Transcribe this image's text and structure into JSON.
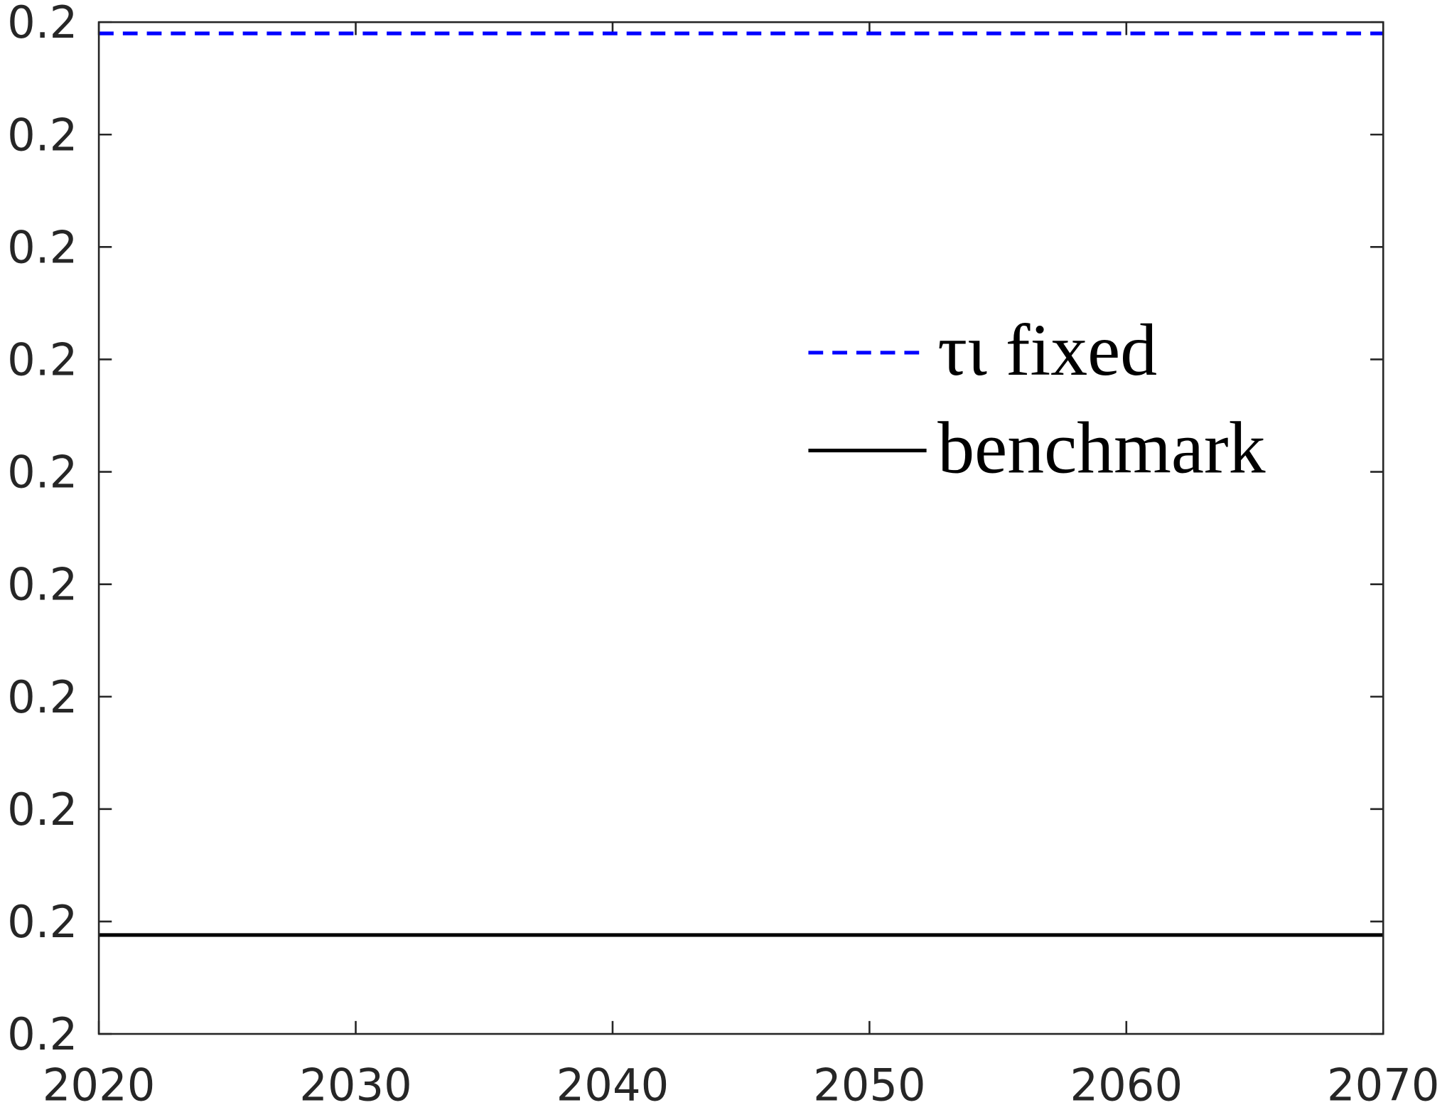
{
  "chart_data": {
    "type": "line",
    "x": [
      2020,
      2070
    ],
    "xlim": [
      2020,
      2070
    ],
    "xticks": [
      2020,
      2030,
      2040,
      2050,
      2060,
      2070
    ],
    "ylim": [
      0.2,
      0.2009
    ],
    "yticks": [
      {
        "value": 0.2,
        "label": "0.2"
      },
      {
        "value": 0.2001,
        "label": "0.2"
      },
      {
        "value": 0.2002,
        "label": "0.2"
      },
      {
        "value": 0.2003,
        "label": "0.2"
      },
      {
        "value": 0.2004,
        "label": "0.2"
      },
      {
        "value": 0.2005,
        "label": "0.2"
      },
      {
        "value": 0.2006,
        "label": "0.2"
      },
      {
        "value": 0.2007,
        "label": "0.2"
      },
      {
        "value": 0.2008,
        "label": "0.2"
      },
      {
        "value": 0.2009,
        "label": "0.2"
      }
    ],
    "series": [
      {
        "name": "τι fixed",
        "color": "#0000ff",
        "dashed": true,
        "values": [
          0.20089,
          0.20089
        ]
      },
      {
        "name": "benchmark",
        "color": "#000000",
        "dashed": false,
        "values": [
          0.200088,
          0.200088
        ]
      }
    ]
  }
}
